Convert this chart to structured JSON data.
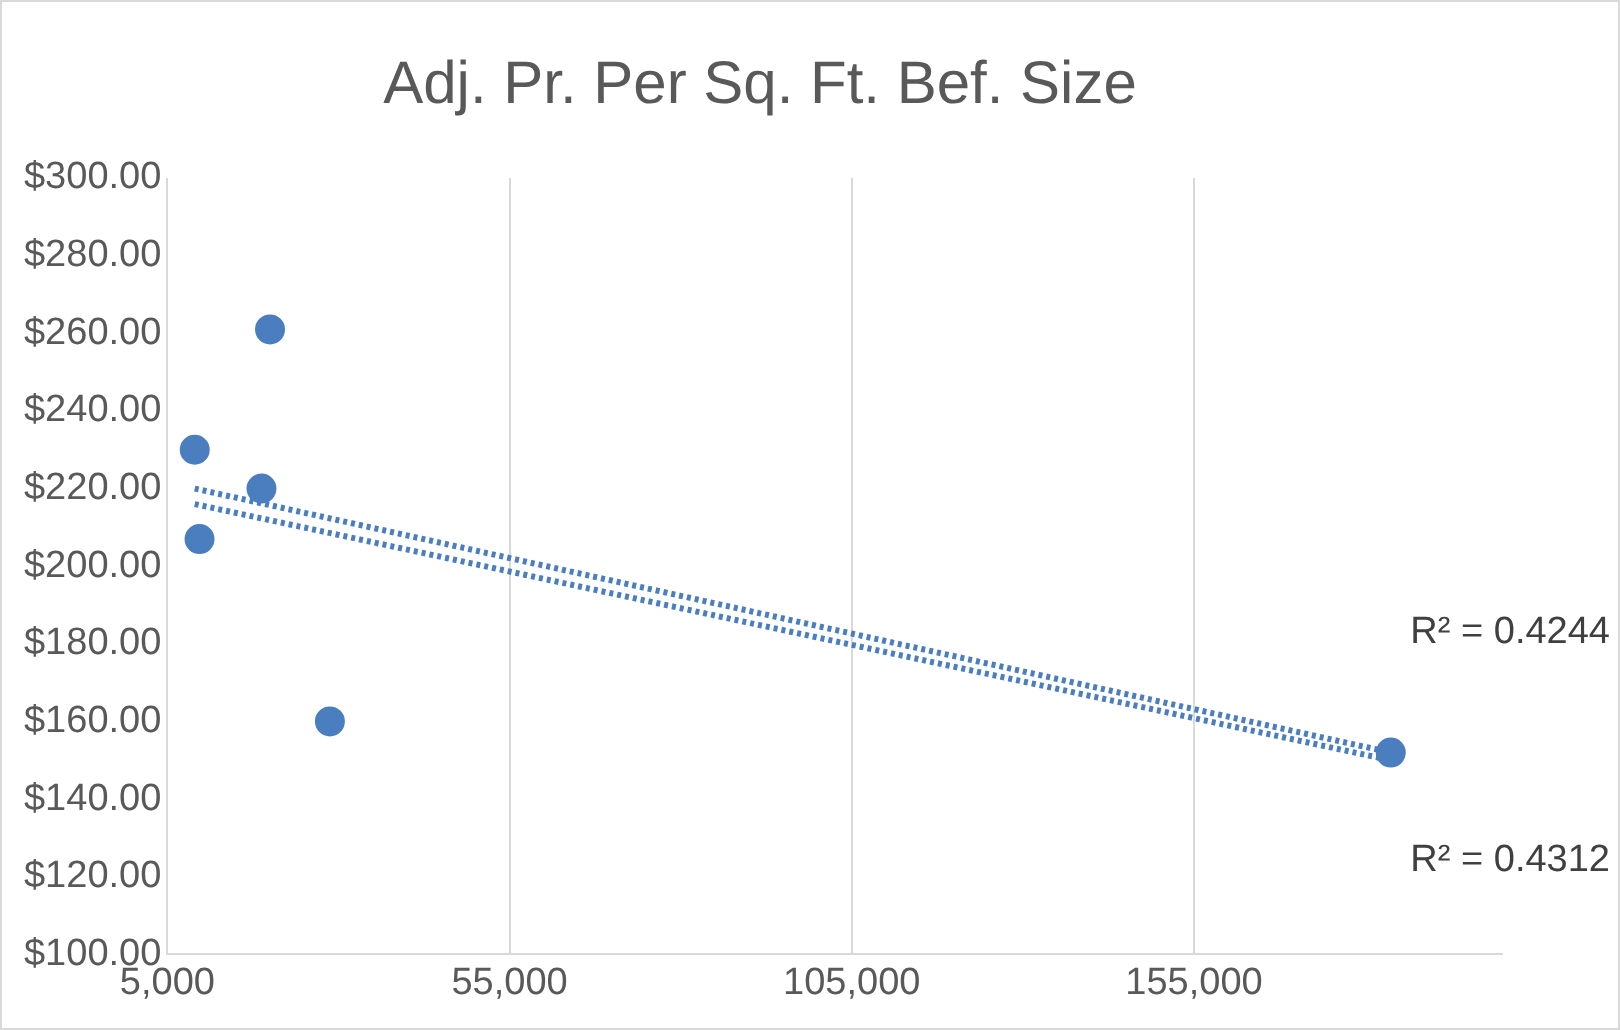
{
  "chart_data": {
    "type": "scatter",
    "title": "Adj. Pr. Per Sq. Ft. Bef. Size",
    "series": [
      {
        "color": "#4a7ebf",
        "x": [
          9000,
          9700,
          20000,
          18750,
          28750,
          183750
        ],
        "values": [
          230,
          207,
          261,
          220,
          160,
          152
        ]
      },
      {
        "type": "line",
        "color": "#4a7ebf",
        "line_style": "dotted",
        "marker": "none",
        "x": [
          9000,
          183750
        ],
        "values": [
          220,
          152
        ]
      },
      {
        "type": "line",
        "color": "#4a7ebf",
        "line_style": "dotted",
        "marker": "none",
        "x": [
          9000,
          183750
        ],
        "values": [
          216,
          150
        ]
      }
    ],
    "marker": "circle",
    "xlim": [
      5000,
      200000
    ],
    "xticks": [
      {
        "value": 5000,
        "label": "5,000"
      },
      {
        "value": 55000,
        "label": "55,000"
      },
      {
        "value": 105000,
        "label": "105,000"
      },
      {
        "value": 155000,
        "label": "155,000"
      }
    ],
    "ylim": [
      100,
      300
    ],
    "yticks": [
      {
        "value": 100,
        "label": "$100.00"
      },
      {
        "value": 120,
        "label": "$120.00"
      },
      {
        "value": 140,
        "label": "$140.00"
      },
      {
        "value": 160,
        "label": "$160.00"
      },
      {
        "value": 180,
        "label": "$180.00"
      },
      {
        "value": 200,
        "label": "$200.00"
      },
      {
        "value": 220,
        "label": "$220.00"
      },
      {
        "value": 240,
        "label": "$240.00"
      },
      {
        "value": 260,
        "label": "$260.00"
      },
      {
        "value": 280,
        "label": "$280.00"
      },
      {
        "value": 300,
        "label": "$300.00"
      }
    ],
    "grid": "x",
    "annotations": [
      "R² = 0.4244",
      "R² = 0.4312"
    ]
  }
}
